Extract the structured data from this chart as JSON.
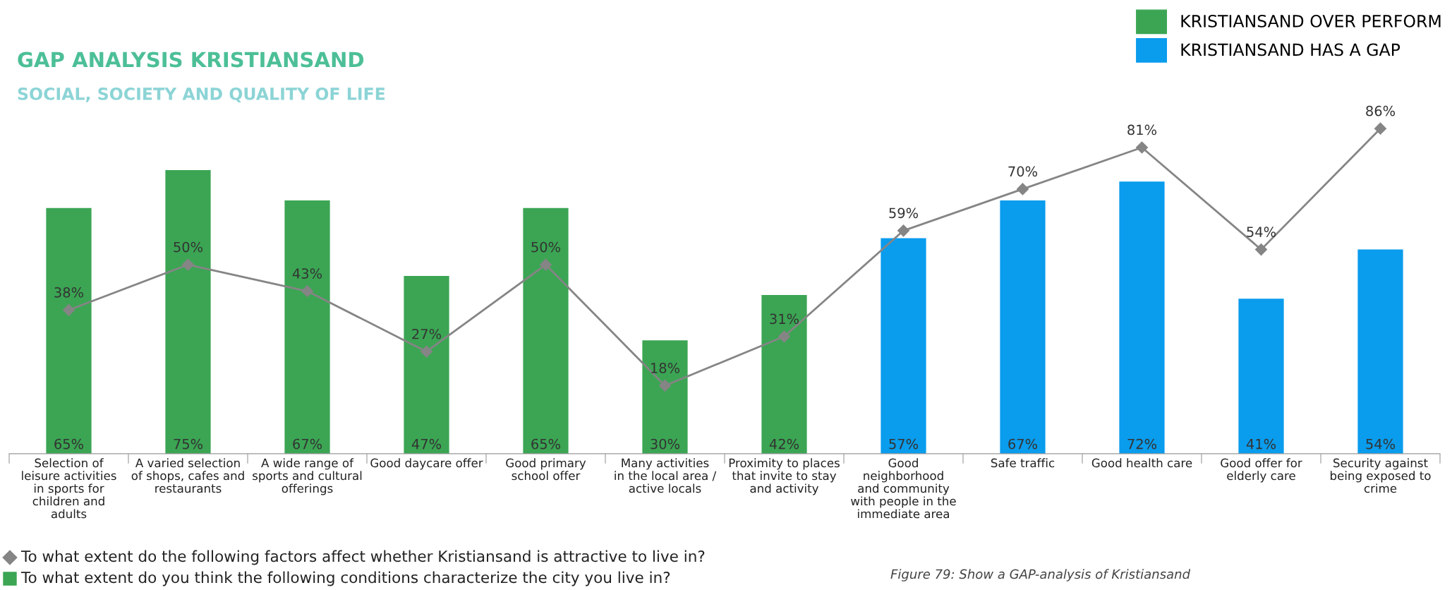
{
  "chart_data": {
    "type": "bar",
    "title": "GAP ANALYSIS KRISTIANSAND",
    "subtitle": "SOCIAL, SOCIETY AND QUALITY OF LIFE",
    "categories": [
      "Selection of\nleisure activities\nin sports for\nchildren and\nadults",
      "A varied selection\nof shops, cafes and\nrestaurants",
      "A wide range of\nsports and cultural\nofferings",
      "Good daycare offer",
      "Good primary\nschool offer",
      "Many activities\nin the local area /\nactive locals",
      "Proximity to places\nthat invite to stay\nand activity",
      "Good\nneighborhood\nand community\nwith people in the\nimmediate area",
      "Safe traffic",
      "Good health care",
      "Good offer for\nelderly care",
      "Security against\nbeing exposed to\ncrime"
    ],
    "series": [
      {
        "name": "KRISTIANSAND OVER PERFORM",
        "color": "#3ba553",
        "values": [
          65,
          75,
          67,
          47,
          65,
          30,
          42,
          null,
          null,
          null,
          null,
          null
        ],
        "value_labels": [
          "65%",
          "75%",
          "67%",
          "47%",
          "65%",
          "30%",
          "42%",
          null,
          null,
          null,
          null,
          null
        ]
      },
      {
        "name": "KRISTIANSAND HAS A GAP",
        "color": "#0a9ced",
        "values": [
          null,
          null,
          null,
          null,
          null,
          null,
          null,
          57,
          67,
          72,
          41,
          54
        ],
        "value_labels": [
          null,
          null,
          null,
          null,
          null,
          null,
          null,
          "57%",
          "67%",
          "72%",
          "41%",
          "54%"
        ]
      },
      {
        "name": "To what extent do the following factors affect whether Kristiansand is attractive to live in?",
        "type": "line",
        "color": "#858585",
        "marker": "diamond",
        "values": [
          38,
          50,
          43,
          27,
          50,
          18,
          31,
          59,
          70,
          81,
          54,
          86
        ],
        "value_labels": [
          "38%",
          "50%",
          "43%",
          "27%",
          "50%",
          "18%",
          "31%",
          "59%",
          "70%",
          "81%",
          "54%",
          "86%"
        ]
      }
    ],
    "data_labels": true,
    "legend": "top right",
    "annotations": [
      "To what extent do you think the following conditions characterize the city you live in?",
      "Figure 79: Show a GAP-analysis of Kristiansand"
    ]
  }
}
